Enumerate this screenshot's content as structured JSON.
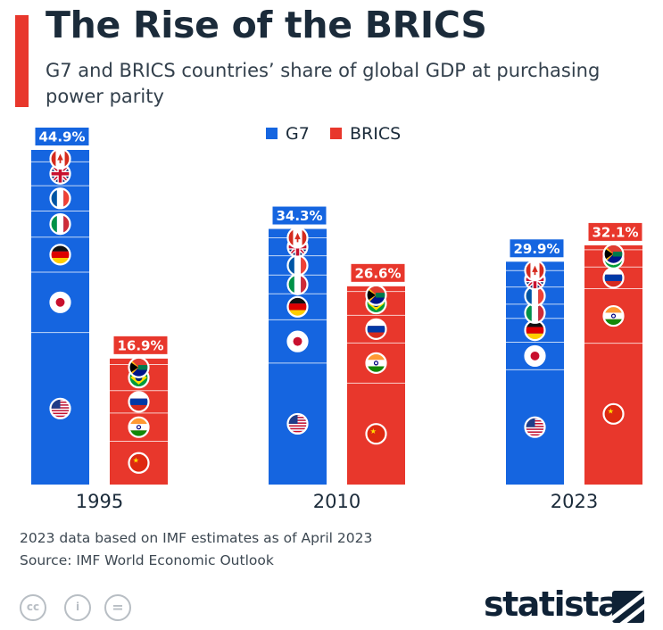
{
  "header": {
    "title": "The Rise of the BRICS",
    "subtitle": "G7 and BRICS countries’ share of global GDP at purchasing power parity"
  },
  "colors": {
    "g7": "#1565e0",
    "brics": "#e8372c",
    "accent": "#e8372c",
    "text": "#1b2b3a"
  },
  "chart_data": {
    "type": "bar",
    "title": "The Rise of the BRICS",
    "subtitle": "G7 and BRICS countries’ share of global GDP at purchasing power parity",
    "categories": [
      "1995",
      "2010",
      "2023"
    ],
    "series": [
      {
        "name": "G7",
        "color": "#1565e0",
        "values": [
          44.9,
          34.3,
          29.9
        ],
        "labels": [
          "44.9%",
          "34.3%",
          "29.9%"
        ],
        "stack_order": [
          "United States",
          "Japan",
          "Germany",
          "Italy",
          "France",
          "United Kingdom",
          "Canada"
        ],
        "stacks": [
          [
            20.4,
            8.1,
            4.7,
            3.5,
            3.4,
            3.2,
            1.6
          ],
          [
            16.3,
            5.8,
            3.5,
            2.5,
            2.6,
            2.4,
            1.2
          ],
          [
            15.4,
            3.7,
            3.2,
            1.9,
            2.3,
            2.2,
            1.2
          ]
        ]
      },
      {
        "name": "BRICS",
        "color": "#e8372c",
        "values": [
          16.9,
          26.6,
          32.1
        ],
        "labels": [
          "16.9%",
          "26.6%",
          "32.1%"
        ],
        "stack_order": [
          "China",
          "India",
          "Russia",
          "Brazil",
          "South Africa"
        ],
        "stacks": [
          [
            5.8,
            3.8,
            3.0,
            3.5,
            0.8
          ],
          [
            13.6,
            5.4,
            3.7,
            3.2,
            0.7
          ],
          [
            18.9,
            7.3,
            2.9,
            2.3,
            0.6
          ]
        ]
      }
    ],
    "legend": [
      "G7",
      "BRICS"
    ],
    "legend_position": "top-center",
    "ylim": [
      0,
      45
    ],
    "grid": false,
    "xlabel": "",
    "ylabel": ""
  },
  "footer": {
    "note": "2023 data based on IMF estimates as of April 2023",
    "source": "Source: IMF World Economic Outlook",
    "license_cc": "cc",
    "license_by": "i",
    "license_nd": "=",
    "brand": "statista"
  }
}
